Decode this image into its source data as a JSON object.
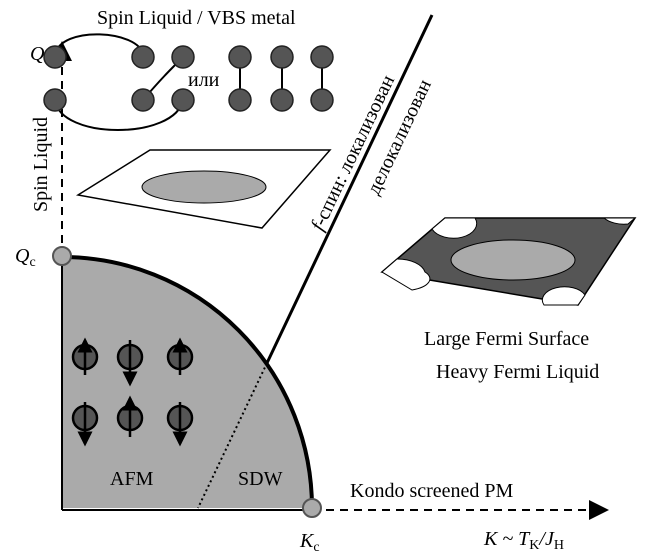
{
  "title": "Spin Liquid / VBS metal",
  "or_word": "или",
  "y_axis": {
    "label": "Q",
    "phase": "Spin Liquid"
  },
  "q_critical": {
    "main": "Q",
    "sub": "c"
  },
  "k_critical": {
    "main": "K",
    "sub": "c"
  },
  "x_axis": {
    "k": "K ~ T",
    "k_sub": "K",
    "slash": "/J",
    "j_sub": "H",
    "phase": "Kondo screened PM"
  },
  "boundary": {
    "left_f": "f",
    "left_rest": "-спин: локализован",
    "right": "делокализован"
  },
  "regions": {
    "afm": "AFM",
    "sdw": "SDW",
    "large_fs": "Large Fermi Surface",
    "heavy_fl": "Heavy Fermi Liquid"
  }
}
